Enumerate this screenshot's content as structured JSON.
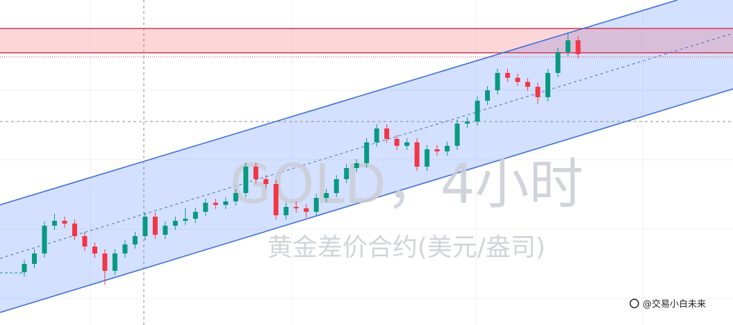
{
  "chart_data": {
    "type": "candlestick",
    "title": "GOLD，4小时",
    "subtitle": "黄金差价合约(美元/盎司)",
    "credit": "@交易小白未来",
    "ylim": [
      0,
      468
    ],
    "up_color": "#089981",
    "down_color": "#f23645",
    "open": [
      76,
      88,
      103,
      143,
      150,
      146,
      128,
      113,
      103,
      78,
      103,
      116,
      128,
      156,
      130,
      143,
      150,
      153,
      163,
      176,
      173,
      178,
      190,
      228,
      210,
      203,
      158,
      170,
      168,
      163,
      183,
      190,
      210,
      226,
      233,
      263,
      283,
      268,
      258,
      263,
      228,
      253,
      250,
      258,
      290,
      293,
      323,
      338,
      363,
      356,
      350,
      343,
      328,
      363,
      393,
      410
    ],
    "high": [
      94,
      109,
      149,
      160,
      156,
      152,
      134,
      119,
      109,
      109,
      122,
      134,
      162,
      162,
      149,
      156,
      168,
      169,
      182,
      182,
      184,
      196,
      234,
      234,
      216,
      209,
      176,
      178,
      174,
      189,
      196,
      216,
      232,
      239,
      269,
      289,
      289,
      274,
      269,
      269,
      259,
      259,
      264,
      296,
      299,
      329,
      344,
      369,
      369,
      362,
      356,
      349,
      369,
      399,
      420,
      416
    ],
    "low": [
      70,
      82,
      97,
      137,
      140,
      122,
      107,
      97,
      58,
      72,
      97,
      110,
      122,
      124,
      124,
      137,
      144,
      147,
      157,
      167,
      167,
      172,
      184,
      204,
      197,
      152,
      152,
      162,
      155,
      157,
      177,
      184,
      204,
      220,
      227,
      257,
      262,
      252,
      252,
      222,
      222,
      244,
      244,
      252,
      284,
      287,
      317,
      332,
      350,
      344,
      337,
      318,
      322,
      357,
      387,
      384
    ],
    "close": [
      88,
      103,
      143,
      150,
      146,
      128,
      113,
      103,
      78,
      103,
      116,
      128,
      156,
      130,
      143,
      150,
      153,
      163,
      176,
      173,
      178,
      190,
      228,
      210,
      203,
      158,
      170,
      168,
      163,
      183,
      190,
      210,
      226,
      233,
      263,
      283,
      268,
      258,
      263,
      228,
      253,
      250,
      258,
      290,
      293,
      323,
      338,
      363,
      356,
      350,
      343,
      328,
      363,
      393,
      410,
      390
    ]
  }
}
